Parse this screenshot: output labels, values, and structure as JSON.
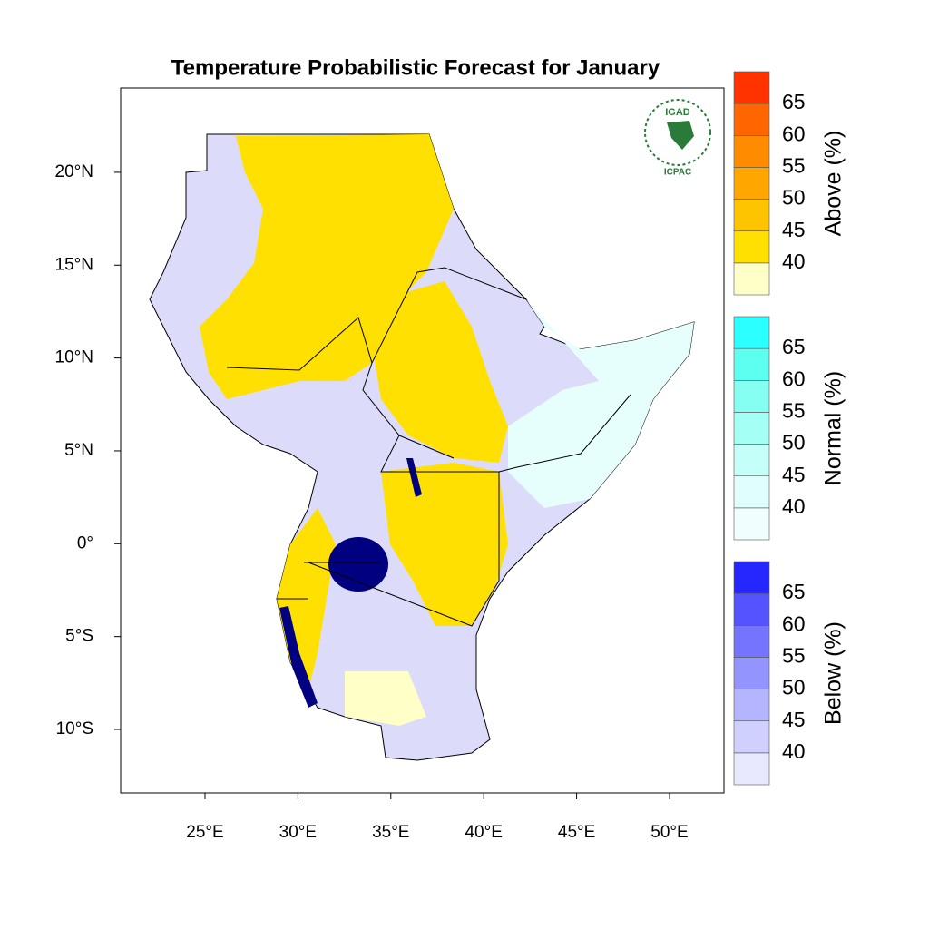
{
  "title": "Temperature Probabilistic Forecast for January",
  "map": {
    "xlim": [
      20.46,
      52.93
    ],
    "ylim": [
      -13.42,
      24.54
    ],
    "xticks": [
      {
        "value": 25,
        "label": "25°E"
      },
      {
        "value": 30,
        "label": "30°E"
      },
      {
        "value": 35,
        "label": "35°E"
      },
      {
        "value": 40,
        "label": "40°E"
      },
      {
        "value": 45,
        "label": "45°E"
      },
      {
        "value": 50,
        "label": "50°E"
      }
    ],
    "yticks": [
      {
        "value": 20,
        "label": "20°N"
      },
      {
        "value": 15,
        "label": "15°N"
      },
      {
        "value": 10,
        "label": "10°N"
      },
      {
        "value": 5,
        "label": "5°N"
      },
      {
        "value": 0,
        "label": "0°"
      },
      {
        "value": -5,
        "label": "5°S"
      },
      {
        "value": -10,
        "label": "10°S"
      }
    ]
  },
  "legends": [
    {
      "title": "Above (%)",
      "ticks": [
        40,
        45,
        50,
        55,
        60,
        65
      ],
      "colors": [
        "#ffffc8",
        "#ffe000",
        "#ffc400",
        "#ffa600",
        "#ff8c00",
        "#ff6600",
        "#ff3300"
      ]
    },
    {
      "title": "Normal (%)",
      "ticks": [
        40,
        45,
        50,
        55,
        60,
        65
      ],
      "colors": [
        "#f0fffe",
        "#e0fffc",
        "#c4fff9",
        "#a4fff5",
        "#84fff2",
        "#5cfff0",
        "#2cffff"
      ]
    },
    {
      "title": "Below (%)",
      "ticks": [
        40,
        45,
        50,
        55,
        60,
        65
      ],
      "colors": [
        "#e8e8ff",
        "#d0d0ff",
        "#b4b4ff",
        "#9494ff",
        "#7474ff",
        "#5454ff",
        "#2626ff"
      ]
    }
  ],
  "logo": {
    "top": "IGAD",
    "bottom": "ICPAC"
  }
}
